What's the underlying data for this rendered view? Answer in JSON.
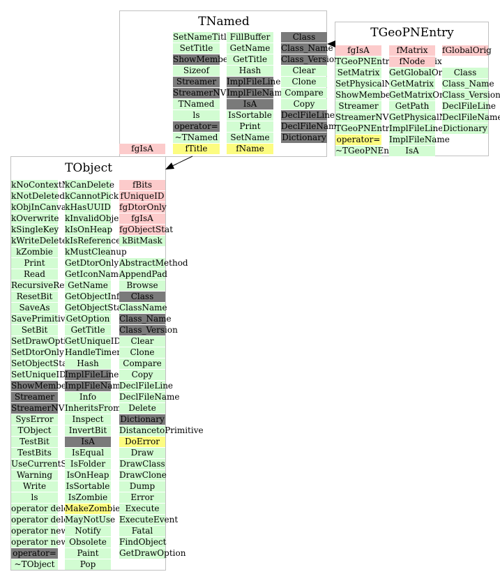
{
  "colors": {
    "green": "#d2fcd2",
    "pink": "#fccbcb",
    "gray": "#7a7a7a",
    "yellow": "#fcfc80"
  },
  "classes": [
    {
      "name": "TNamed",
      "columns": [
        {
          "cells": [
            {
              "t": "SetNameTitle",
              "c": "green"
            },
            {
              "t": "SetTitle",
              "c": "green"
            },
            {
              "t": "ShowMembers",
              "c": "gray"
            },
            {
              "t": "Sizeof",
              "c": "green"
            },
            {
              "t": "Streamer",
              "c": "gray"
            },
            {
              "t": "StreamerNVirtual",
              "c": "gray"
            },
            {
              "t": "TNamed",
              "c": "green"
            },
            {
              "t": "ls",
              "c": "green"
            },
            {
              "t": "operator=",
              "c": "gray"
            },
            {
              "t": "~TNamed",
              "c": "green"
            },
            {
              "t": "fTitle",
              "c": "yellow"
            }
          ]
        },
        {
          "cells": [
            {
              "t": "FillBuffer",
              "c": "green"
            },
            {
              "t": "GetName",
              "c": "green"
            },
            {
              "t": "GetTitle",
              "c": "green"
            },
            {
              "t": "Hash",
              "c": "green"
            },
            {
              "t": "ImplFileLine",
              "c": "gray"
            },
            {
              "t": "ImplFileName",
              "c": "gray"
            },
            {
              "t": "IsA",
              "c": "gray"
            },
            {
              "t": "IsSortable",
              "c": "green"
            },
            {
              "t": "Print",
              "c": "green"
            },
            {
              "t": "SetName",
              "c": "green"
            },
            {
              "t": "fName",
              "c": "yellow"
            }
          ]
        },
        {
          "cells": [
            {
              "t": "Class",
              "c": "gray"
            },
            {
              "t": "Class_Name",
              "c": "gray"
            },
            {
              "t": "Class_Version",
              "c": "gray"
            },
            {
              "t": "Clear",
              "c": "green"
            },
            {
              "t": "Clone",
              "c": "green"
            },
            {
              "t": "Compare",
              "c": "green"
            },
            {
              "t": "Copy",
              "c": "green"
            },
            {
              "t": "DeclFileLine",
              "c": "gray"
            },
            {
              "t": "DeclFileName",
              "c": "gray"
            },
            {
              "t": "Dictionary",
              "c": "gray"
            }
          ]
        }
      ],
      "extra": [
        {
          "t": "fgIsA",
          "c": "pink"
        }
      ]
    },
    {
      "name": "TGeoPNEntry",
      "columns": [
        {
          "cells": [
            {
              "t": "fgIsA",
              "c": "pink"
            },
            {
              "t": "TGeoPNEntryOwnMatrix",
              "c": "green"
            },
            {
              "t": "SetMatrix",
              "c": "green"
            },
            {
              "t": "SetPhysicalNode",
              "c": "green"
            },
            {
              "t": "ShowMembers",
              "c": "green"
            },
            {
              "t": "Streamer",
              "c": "green"
            },
            {
              "t": "StreamerNVirtual",
              "c": "green"
            },
            {
              "t": "TGeoPNEntry",
              "c": "green"
            },
            {
              "t": "operator=",
              "c": "yellow"
            },
            {
              "t": "~TGeoPNEntry",
              "c": "green"
            }
          ]
        },
        {
          "cells": [
            {
              "t": "fMatrix",
              "c": "pink"
            },
            {
              "t": "fNode",
              "c": "pink"
            },
            {
              "t": "GetGlobalOrig",
              "c": "green"
            },
            {
              "t": "GetMatrix",
              "c": "green"
            },
            {
              "t": "GetMatrixOrig",
              "c": "green"
            },
            {
              "t": "GetPath",
              "c": "green"
            },
            {
              "t": "GetPhysicalNode",
              "c": "green"
            },
            {
              "t": "ImplFileLine",
              "c": "green"
            },
            {
              "t": "ImplFileName",
              "c": "green"
            },
            {
              "t": "IsA",
              "c": "green"
            }
          ]
        },
        {
          "cells": [
            {
              "t": "fGlobalOrig",
              "c": "pink"
            },
            {
              "t": "",
              "c": "none"
            },
            {
              "t": "Class",
              "c": "green"
            },
            {
              "t": "Class_Name",
              "c": "green"
            },
            {
              "t": "Class_Version",
              "c": "green"
            },
            {
              "t": "DeclFileLine",
              "c": "green"
            },
            {
              "t": "DeclFileName",
              "c": "green"
            },
            {
              "t": "Dictionary",
              "c": "green"
            }
          ]
        }
      ],
      "extra": []
    },
    {
      "name": "TObject",
      "columns": [
        {
          "cells": [
            {
              "t": "kNoContextMenu",
              "c": "green"
            },
            {
              "t": "kNotDeleted",
              "c": "green"
            },
            {
              "t": "kObjInCanvas",
              "c": "green"
            },
            {
              "t": "kOverwrite",
              "c": "green"
            },
            {
              "t": "kSingleKey",
              "c": "green"
            },
            {
              "t": "kWriteDelete",
              "c": "green"
            },
            {
              "t": "kZombie",
              "c": "green"
            },
            {
              "t": "Print",
              "c": "green"
            },
            {
              "t": "Read",
              "c": "green"
            },
            {
              "t": "RecursiveRemove",
              "c": "green"
            },
            {
              "t": "ResetBit",
              "c": "green"
            },
            {
              "t": "SaveAs",
              "c": "green"
            },
            {
              "t": "SavePrimitive",
              "c": "green"
            },
            {
              "t": "SetBit",
              "c": "green"
            },
            {
              "t": "SetDrawOption",
              "c": "green"
            },
            {
              "t": "SetDtorOnly",
              "c": "green"
            },
            {
              "t": "SetObjectStat",
              "c": "green"
            },
            {
              "t": "SetUniqueID",
              "c": "green"
            },
            {
              "t": "ShowMembers",
              "c": "gray"
            },
            {
              "t": "Streamer",
              "c": "gray"
            },
            {
              "t": "StreamerNVirtual",
              "c": "gray"
            },
            {
              "t": "SysError",
              "c": "green"
            },
            {
              "t": "TObject",
              "c": "green"
            },
            {
              "t": "TestBit",
              "c": "green"
            },
            {
              "t": "TestBits",
              "c": "green"
            },
            {
              "t": "UseCurrentStyle",
              "c": "green"
            },
            {
              "t": "Warning",
              "c": "green"
            },
            {
              "t": "Write",
              "c": "green"
            },
            {
              "t": "ls",
              "c": "green"
            },
            {
              "t": "operator delete",
              "c": "green"
            },
            {
              "t": "operator delete[]",
              "c": "green"
            },
            {
              "t": "operator new",
              "c": "green"
            },
            {
              "t": "operator new[]",
              "c": "green"
            },
            {
              "t": "operator=",
              "c": "gray"
            },
            {
              "t": "~TObject",
              "c": "green"
            }
          ]
        },
        {
          "cells": [
            {
              "t": "kCanDelete",
              "c": "green"
            },
            {
              "t": "kCannotPick",
              "c": "green"
            },
            {
              "t": "kHasUUID",
              "c": "green"
            },
            {
              "t": "kInvalidObject",
              "c": "green"
            },
            {
              "t": "kIsOnHeap",
              "c": "green"
            },
            {
              "t": "kIsReferenced",
              "c": "green"
            },
            {
              "t": "kMustCleanup",
              "c": "green"
            },
            {
              "t": "GetDtorOnly",
              "c": "green"
            },
            {
              "t": "GetIconName",
              "c": "green"
            },
            {
              "t": "GetName",
              "c": "green"
            },
            {
              "t": "GetObjectInfo",
              "c": "green"
            },
            {
              "t": "GetObjectStat",
              "c": "green"
            },
            {
              "t": "GetOption",
              "c": "green"
            },
            {
              "t": "GetTitle",
              "c": "green"
            },
            {
              "t": "GetUniqueID",
              "c": "green"
            },
            {
              "t": "HandleTimer",
              "c": "green"
            },
            {
              "t": "Hash",
              "c": "green"
            },
            {
              "t": "ImplFileLine",
              "c": "gray"
            },
            {
              "t": "ImplFileName",
              "c": "gray"
            },
            {
              "t": "Info",
              "c": "green"
            },
            {
              "t": "InheritsFrom",
              "c": "green"
            },
            {
              "t": "Inspect",
              "c": "green"
            },
            {
              "t": "InvertBit",
              "c": "green"
            },
            {
              "t": "IsA",
              "c": "gray"
            },
            {
              "t": "IsEqual",
              "c": "green"
            },
            {
              "t": "IsFolder",
              "c": "green"
            },
            {
              "t": "IsOnHeap",
              "c": "green"
            },
            {
              "t": "IsSortable",
              "c": "green"
            },
            {
              "t": "IsZombie",
              "c": "green"
            },
            {
              "t": "MakeZombie",
              "c": "yellow"
            },
            {
              "t": "MayNotUse",
              "c": "green"
            },
            {
              "t": "Notify",
              "c": "green"
            },
            {
              "t": "Obsolete",
              "c": "green"
            },
            {
              "t": "Paint",
              "c": "green"
            },
            {
              "t": "Pop",
              "c": "green"
            }
          ]
        },
        {
          "cells": [
            {
              "t": "fBits",
              "c": "pink"
            },
            {
              "t": "fUniqueID",
              "c": "pink"
            },
            {
              "t": "fgDtorOnly",
              "c": "pink"
            },
            {
              "t": "fgIsA",
              "c": "pink"
            },
            {
              "t": "fgObjectStat",
              "c": "pink"
            },
            {
              "t": "kBitMask",
              "c": "green"
            },
            {
              "t": "",
              "c": "none"
            },
            {
              "t": "AbstractMethod",
              "c": "green"
            },
            {
              "t": "AppendPad",
              "c": "green"
            },
            {
              "t": "Browse",
              "c": "green"
            },
            {
              "t": "Class",
              "c": "gray"
            },
            {
              "t": "ClassName",
              "c": "green"
            },
            {
              "t": "Class_Name",
              "c": "gray"
            },
            {
              "t": "Class_Version",
              "c": "gray"
            },
            {
              "t": "Clear",
              "c": "green"
            },
            {
              "t": "Clone",
              "c": "green"
            },
            {
              "t": "Compare",
              "c": "green"
            },
            {
              "t": "Copy",
              "c": "green"
            },
            {
              "t": "DeclFileLine",
              "c": "green"
            },
            {
              "t": "DeclFileName",
              "c": "green"
            },
            {
              "t": "Delete",
              "c": "green"
            },
            {
              "t": "Dictionary",
              "c": "gray"
            },
            {
              "t": "DistancetoPrimitive",
              "c": "green"
            },
            {
              "t": "DoError",
              "c": "yellow"
            },
            {
              "t": "Draw",
              "c": "green"
            },
            {
              "t": "DrawClass",
              "c": "green"
            },
            {
              "t": "DrawClone",
              "c": "green"
            },
            {
              "t": "Dump",
              "c": "green"
            },
            {
              "t": "Error",
              "c": "green"
            },
            {
              "t": "Execute",
              "c": "green"
            },
            {
              "t": "ExecuteEvent",
              "c": "green"
            },
            {
              "t": "Fatal",
              "c": "green"
            },
            {
              "t": "FindObject",
              "c": "green"
            },
            {
              "t": "GetDrawOption",
              "c": "green"
            }
          ]
        }
      ],
      "extra": []
    }
  ]
}
